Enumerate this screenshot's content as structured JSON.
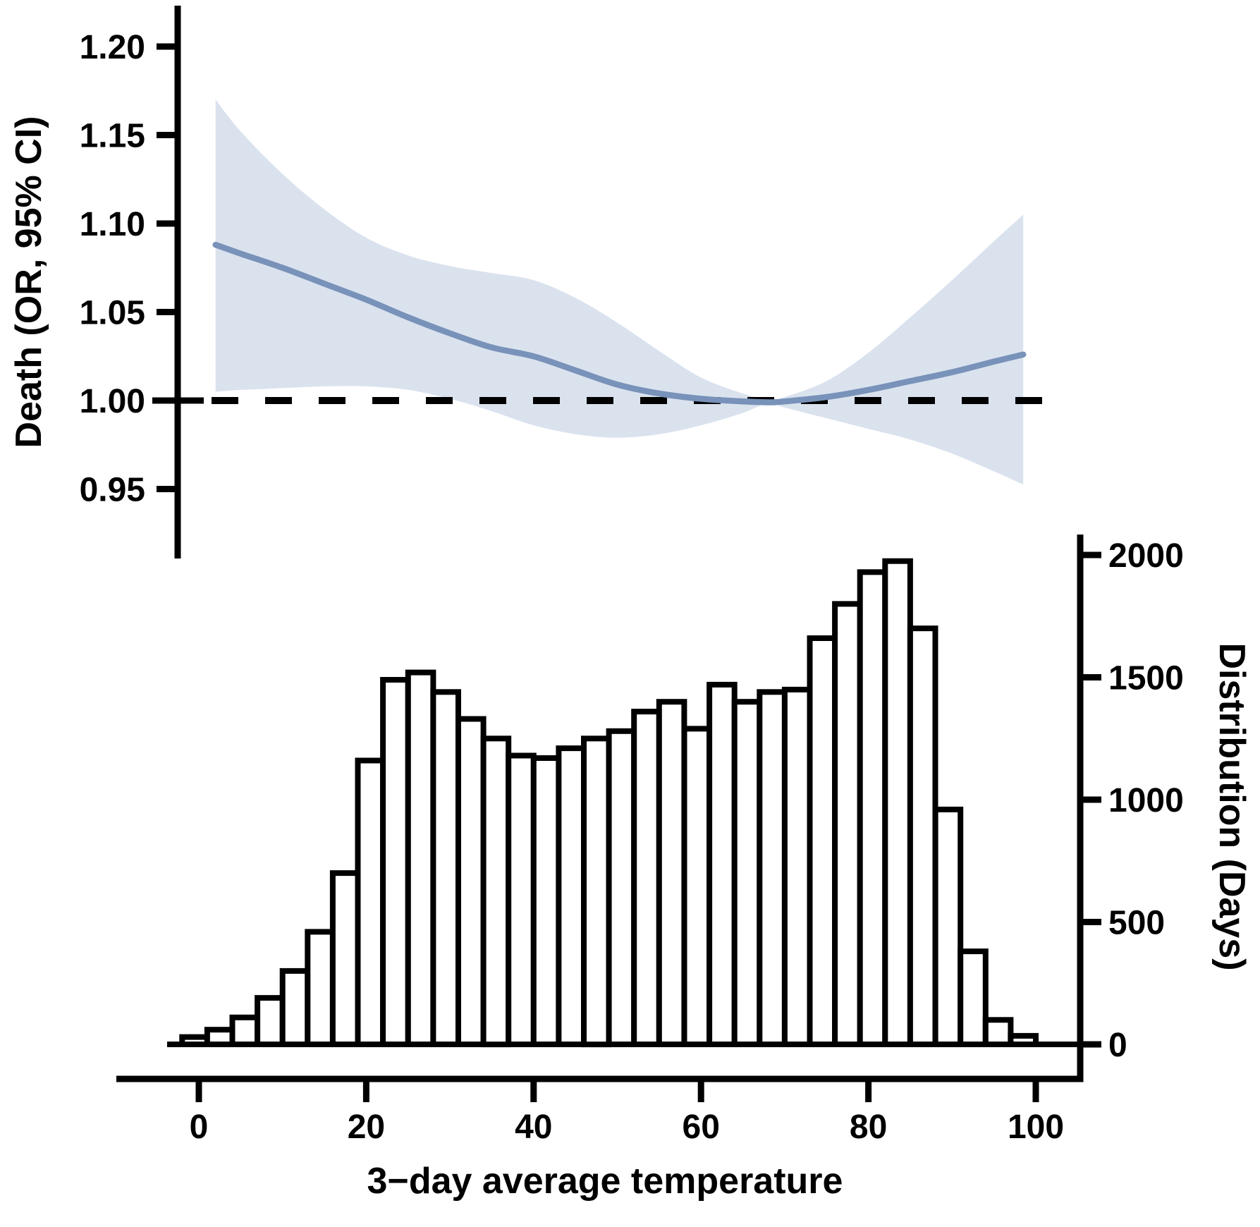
{
  "figure": {
    "left_axis_label": "Death (OR, 95% CI)",
    "right_axis_label": "Distribution (Days)",
    "x_axis_label": "3−day average temperature"
  },
  "colors": {
    "curve": "#7892b9",
    "ci_band": "#dae2ee",
    "axis": "#000000",
    "reference_line": "#000000",
    "bar_fill": "#ffffff",
    "bar_stroke": "#000000",
    "background": "#ffffff"
  },
  "chart_data": [
    {
      "type": "line",
      "name": "odds-ratio-spline-with-ci",
      "ylabel": "Death (OR, 95% CI)",
      "xlabel": "3−day average temperature",
      "ylim": [
        0.92,
        1.205
      ],
      "xlim": [
        -10,
        105
      ],
      "grid": false,
      "legend": "none",
      "reference_line_y": 1.0,
      "yticks": {
        "values": [
          1.2,
          1.15,
          1.1,
          1.05,
          1.0,
          0.95
        ],
        "labels": [
          "1.20",
          "1.15",
          "1.10",
          "1.05",
          "1.00",
          "0.95"
        ]
      },
      "x": [
        2,
        5,
        10,
        15,
        20,
        25,
        30,
        35,
        40,
        45,
        50,
        55,
        60,
        65,
        68,
        70,
        75,
        80,
        85,
        90,
        95,
        98.5
      ],
      "series": [
        {
          "name": "odds_ratio",
          "values": [
            1.088,
            1.083,
            1.075,
            1.066,
            1.057,
            1.047,
            1.038,
            1.03,
            1.025,
            1.017,
            1.009,
            1.004,
            1.001,
            0.9995,
            0.999,
            0.9995,
            1.002,
            1.006,
            1.011,
            1.016,
            1.022,
            1.026
          ]
        },
        {
          "name": "upper_95ci",
          "values": [
            1.17,
            1.152,
            1.128,
            1.108,
            1.092,
            1.082,
            1.076,
            1.072,
            1.068,
            1.058,
            1.044,
            1.028,
            1.013,
            1.004,
            1.0005,
            1.002,
            1.011,
            1.027,
            1.047,
            1.068,
            1.09,
            1.105
          ]
        },
        {
          "name": "lower_95ci",
          "values": [
            1.005,
            1.006,
            1.007,
            1.008,
            1.008,
            1.006,
            1.001,
            0.994,
            0.986,
            0.981,
            0.979,
            0.981,
            0.986,
            0.993,
            0.9985,
            0.996,
            0.99,
            0.984,
            0.978,
            0.97,
            0.96,
            0.9525
          ]
        }
      ]
    },
    {
      "type": "bar",
      "name": "temperature-distribution-histogram",
      "ylabel": "Distribution (Days)",
      "xlabel": "3−day average temperature",
      "ylim": [
        0,
        2100
      ],
      "grid": false,
      "yticks": {
        "values": [
          2000,
          1500,
          1000,
          500,
          0
        ],
        "labels": [
          "2000",
          "1500",
          "1000",
          "500",
          "0"
        ]
      },
      "xticks": {
        "values": [
          0,
          20,
          40,
          60,
          80,
          100
        ],
        "labels": [
          "0",
          "20",
          "40",
          "60",
          "80",
          "100"
        ]
      },
      "bin_start": -2,
      "bin_width": 3,
      "values": [
        30,
        60,
        110,
        190,
        300,
        460,
        700,
        1160,
        1490,
        1520,
        1440,
        1330,
        1250,
        1180,
        1170,
        1210,
        1250,
        1280,
        1360,
        1400,
        1290,
        1470,
        1400,
        1440,
        1450,
        1660,
        1800,
        1930,
        1975,
        1700,
        960,
        380,
        100,
        35
      ]
    }
  ]
}
